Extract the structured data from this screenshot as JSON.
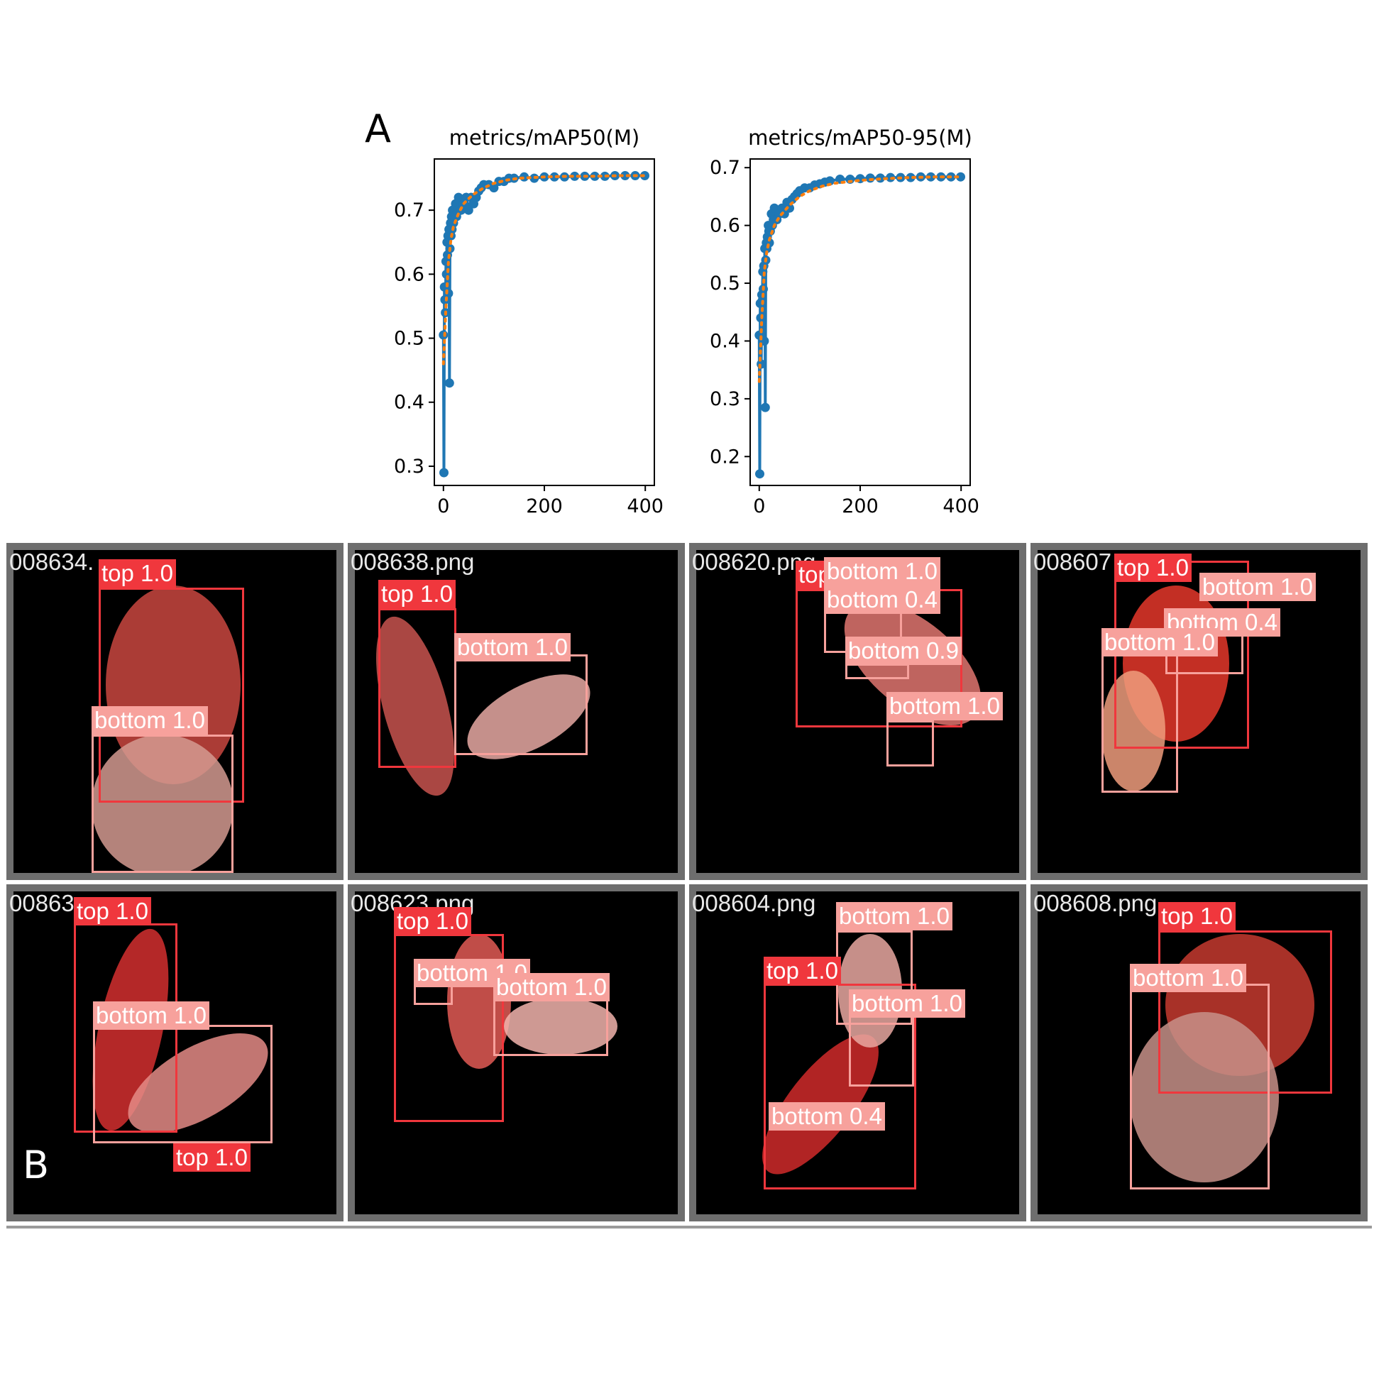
{
  "panels": {
    "a": "A",
    "b": "B"
  },
  "chart_data": [
    {
      "type": "line",
      "title": "metrics/mAP50(M)",
      "xlabel": "",
      "ylabel": "",
      "xlim": [
        -18,
        418
      ],
      "ylim": [
        0.27,
        0.78
      ],
      "xticks": [
        0,
        200,
        400
      ],
      "yticks": [
        0.3,
        0.4,
        0.5,
        0.6,
        0.7
      ],
      "grid": false,
      "series": [
        {
          "style": "markers-line",
          "color": "#1f77b4",
          "x": [
            0,
            1,
            2,
            3,
            4,
            5,
            6,
            7,
            8,
            9,
            10,
            11,
            12,
            13,
            14,
            15,
            16,
            17,
            18,
            19,
            20,
            22,
            24,
            26,
            28,
            30,
            35,
            40,
            45,
            50,
            55,
            60,
            65,
            70,
            75,
            80,
            90,
            100,
            110,
            120,
            130,
            140,
            160,
            180,
            200,
            220,
            240,
            260,
            280,
            300,
            320,
            340,
            360,
            380,
            399
          ],
          "y": [
            0.505,
            0.29,
            0.58,
            0.56,
            0.54,
            0.62,
            0.6,
            0.65,
            0.63,
            0.66,
            0.57,
            0.67,
            0.43,
            0.64,
            0.68,
            0.66,
            0.69,
            0.67,
            0.7,
            0.69,
            0.68,
            0.69,
            0.71,
            0.69,
            0.7,
            0.72,
            0.7,
            0.71,
            0.72,
            0.7,
            0.72,
            0.71,
            0.72,
            0.73,
            0.735,
            0.74,
            0.74,
            0.735,
            0.745,
            0.745,
            0.75,
            0.75,
            0.752,
            0.75,
            0.752,
            0.752,
            0.752,
            0.753,
            0.753,
            0.753,
            0.753,
            0.754,
            0.754,
            0.754,
            0.754
          ]
        },
        {
          "style": "dotted",
          "color": "#ff7f0e",
          "x": [
            0,
            5,
            10,
            15,
            20,
            30,
            40,
            50,
            60,
            80,
            100,
            125,
            150,
            200,
            250,
            300,
            350,
            399
          ],
          "y": [
            0.46,
            0.55,
            0.62,
            0.655,
            0.675,
            0.695,
            0.71,
            0.718,
            0.725,
            0.735,
            0.742,
            0.747,
            0.75,
            0.752,
            0.753,
            0.753,
            0.754,
            0.754
          ]
        }
      ]
    },
    {
      "type": "line",
      "title": "metrics/mAP50-95(M)",
      "xlabel": "",
      "ylabel": "",
      "xlim": [
        -18,
        418
      ],
      "ylim": [
        0.15,
        0.715
      ],
      "xticks": [
        0,
        200,
        400
      ],
      "yticks": [
        0.2,
        0.3,
        0.4,
        0.5,
        0.6,
        0.7
      ],
      "grid": false,
      "series": [
        {
          "style": "markers-line",
          "color": "#1f77b4",
          "x": [
            0,
            1,
            2,
            3,
            4,
            5,
            6,
            7,
            8,
            9,
            10,
            11,
            12,
            13,
            14,
            15,
            16,
            17,
            18,
            19,
            20,
            22,
            24,
            26,
            28,
            30,
            35,
            40,
            45,
            50,
            55,
            60,
            65,
            70,
            75,
            80,
            90,
            100,
            110,
            120,
            130,
            140,
            160,
            180,
            200,
            220,
            240,
            260,
            280,
            300,
            320,
            340,
            360,
            380,
            399
          ],
          "y": [
            0.41,
            0.17,
            0.465,
            0.44,
            0.36,
            0.48,
            0.47,
            0.52,
            0.49,
            0.53,
            0.4,
            0.56,
            0.285,
            0.54,
            0.57,
            0.56,
            0.58,
            0.57,
            0.6,
            0.59,
            0.57,
            0.59,
            0.62,
            0.6,
            0.61,
            0.63,
            0.61,
            0.62,
            0.63,
            0.62,
            0.64,
            0.63,
            0.645,
            0.65,
            0.655,
            0.66,
            0.665,
            0.665,
            0.67,
            0.672,
            0.675,
            0.677,
            0.68,
            0.68,
            0.681,
            0.682,
            0.682,
            0.683,
            0.683,
            0.683,
            0.684,
            0.684,
            0.684,
            0.684,
            0.684
          ]
        },
        {
          "style": "dotted",
          "color": "#ff7f0e",
          "x": [
            0,
            5,
            10,
            15,
            20,
            30,
            40,
            50,
            60,
            80,
            100,
            125,
            150,
            200,
            250,
            300,
            350,
            399
          ],
          "y": [
            0.33,
            0.44,
            0.52,
            0.555,
            0.575,
            0.6,
            0.615,
            0.625,
            0.635,
            0.65,
            0.66,
            0.668,
            0.673,
            0.678,
            0.681,
            0.683,
            0.684,
            0.684
          ]
        }
      ]
    }
  ],
  "tiles": [
    {
      "file": "008634.",
      "labels": [
        {
          "text": "top 1.0",
          "kind": "top"
        },
        {
          "text": "bottom 1.0",
          "kind": "bottom"
        }
      ]
    },
    {
      "file": "008638.png",
      "labels": [
        {
          "text": "top 1.0",
          "kind": "top"
        },
        {
          "text": "bottom 1.0",
          "kind": "bottom"
        }
      ]
    },
    {
      "file": "008620.png",
      "labels": [
        {
          "text": "top",
          "kind": "top"
        },
        {
          "text": "bottom 1.0",
          "kind": "bottom"
        },
        {
          "text": "bottom 0.4",
          "kind": "bottom"
        },
        {
          "text": "bottom 0.9",
          "kind": "bottom"
        },
        {
          "text": "bottom 1.0",
          "kind": "bottom"
        }
      ]
    },
    {
      "file": "008607",
      "labels": [
        {
          "text": "top 1.0",
          "kind": "top"
        },
        {
          "text": "bottom 1.0",
          "kind": "bottom"
        },
        {
          "text": "bottom 0.4",
          "kind": "bottom"
        },
        {
          "text": "bottom 1.0",
          "kind": "bottom"
        }
      ]
    },
    {
      "file": "00863",
      "labels": [
        {
          "text": "top 1.0",
          "kind": "top"
        },
        {
          "text": "bottom 1.0",
          "kind": "bottom"
        },
        {
          "text": "top 1.0",
          "kind": "top"
        }
      ]
    },
    {
      "file": "008623.png",
      "labels": [
        {
          "text": "top 1.0",
          "kind": "top"
        },
        {
          "text": "bottom 1.0",
          "kind": "bottom"
        },
        {
          "text": "bottom 1.0",
          "kind": "bottom"
        }
      ]
    },
    {
      "file": "008604.png",
      "labels": [
        {
          "text": "bottom 1.0",
          "kind": "bottom"
        },
        {
          "text": "top 1.0",
          "kind": "top"
        },
        {
          "text": "bottom 1.0",
          "kind": "bottom"
        },
        {
          "text": "bottom 0.4",
          "kind": "bottom"
        }
      ]
    },
    {
      "file": "008608.png",
      "labels": [
        {
          "text": "top 1.0",
          "kind": "top"
        },
        {
          "text": "bottom 1.0",
          "kind": "bottom"
        }
      ]
    }
  ],
  "colors": {
    "top": "#f0373d",
    "bottom": "#f7a19c",
    "line": "#1f77b4",
    "fit": "#ff7f0e"
  }
}
